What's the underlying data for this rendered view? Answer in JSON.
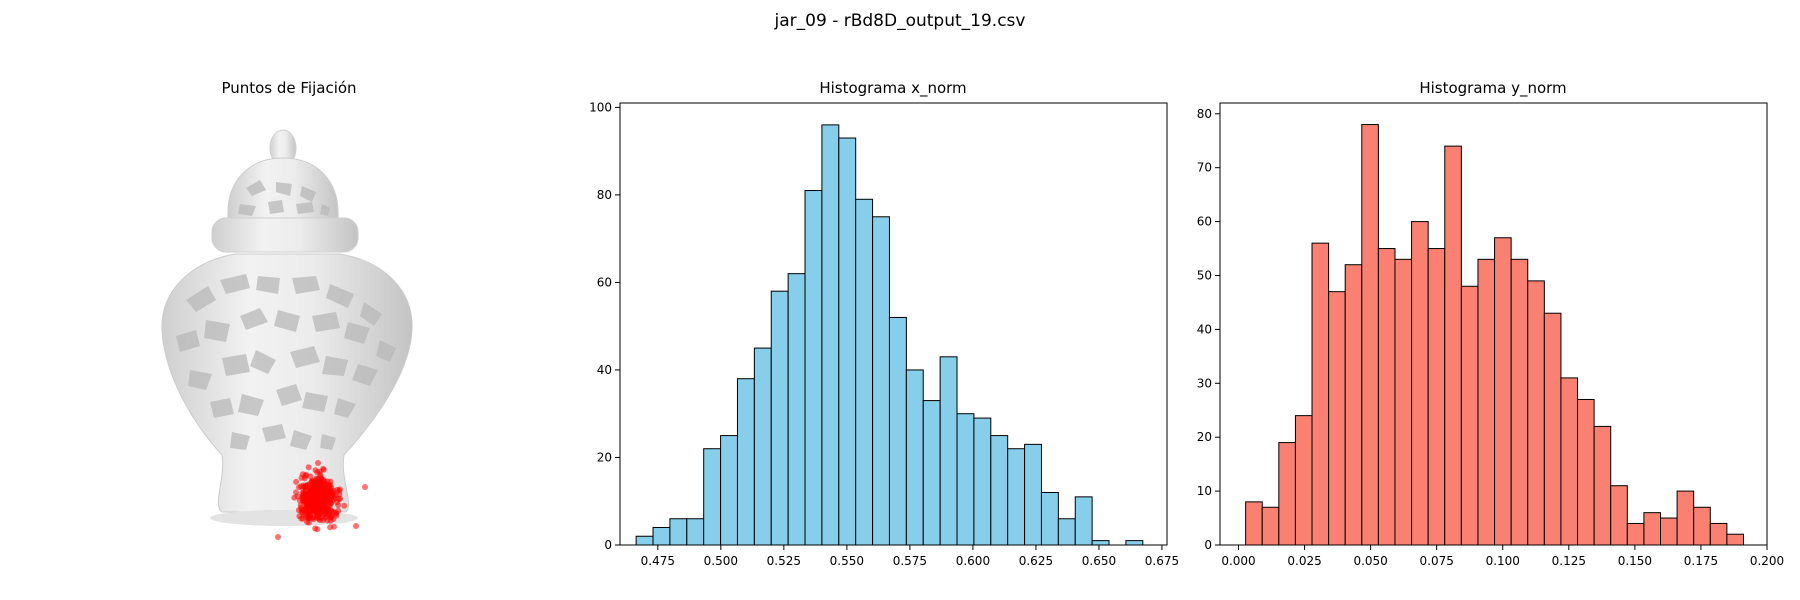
{
  "figure": {
    "suptitle": "jar_09 - rBd8D_output_19.csv"
  },
  "image_panel": {
    "title": "Puntos de Fijación",
    "image": "white-porcelain-ginger-jar-with-lid",
    "marker_color": "#ff0000"
  },
  "chart_data": [
    {
      "type": "bar",
      "subtype": "histogram",
      "title": "Histograma x_norm",
      "xlabel": "",
      "ylabel": "",
      "bar_color": "#87ceeb",
      "edge_color": "#000000",
      "xlim": [
        0.46,
        0.677
      ],
      "ylim": [
        0,
        101
      ],
      "xticks": [
        "0.475",
        "0.500",
        "0.525",
        "0.550",
        "0.575",
        "0.600",
        "0.625",
        "0.650",
        "0.675"
      ],
      "yticks": [
        "0",
        "20",
        "40",
        "60",
        "80",
        "100"
      ],
      "bin_edges": [
        0.4664,
        0.4731,
        0.4798,
        0.4865,
        0.4932,
        0.4999,
        0.5066,
        0.5133,
        0.52,
        0.5267,
        0.5334,
        0.5401,
        0.5468,
        0.5535,
        0.5602,
        0.5669,
        0.5736,
        0.5803,
        0.587,
        0.5937,
        0.6004,
        0.6071,
        0.6138,
        0.6205,
        0.6272,
        0.6339,
        0.6406,
        0.6473,
        0.654,
        0.6607,
        0.6674
      ],
      "values": [
        2,
        4,
        6,
        6,
        22,
        25,
        38,
        45,
        58,
        62,
        81,
        96,
        93,
        79,
        75,
        52,
        40,
        33,
        43,
        30,
        29,
        25,
        22,
        23,
        12,
        6,
        11,
        1,
        0,
        1
      ]
    },
    {
      "type": "bar",
      "subtype": "histogram",
      "title": "Histograma y_norm",
      "xlabel": "",
      "ylabel": "",
      "bar_color": "#fa8072",
      "edge_color": "#000000",
      "xlim": [
        -0.007,
        0.2
      ],
      "ylim": [
        0,
        82
      ],
      "xticks": [
        "0.000",
        "0.025",
        "0.050",
        "0.075",
        "0.100",
        "0.125",
        "0.150",
        "0.175",
        "0.200"
      ],
      "yticks": [
        "0",
        "10",
        "20",
        "30",
        "40",
        "50",
        "60",
        "70",
        "80"
      ],
      "bin_edges": [
        0.0027,
        0.00898,
        0.01526,
        0.02154,
        0.02782,
        0.0341,
        0.04038,
        0.04666,
        0.05294,
        0.05922,
        0.0655,
        0.07178,
        0.07806,
        0.08434,
        0.09062,
        0.0969,
        0.10318,
        0.10946,
        0.11574,
        0.12202,
        0.1283,
        0.13458,
        0.14086,
        0.14714,
        0.15342,
        0.1597,
        0.16598,
        0.17226,
        0.17854,
        0.18482,
        0.1911
      ],
      "values": [
        8,
        7,
        19,
        24,
        56,
        47,
        52,
        78,
        55,
        53,
        60,
        55,
        74,
        48,
        53,
        57,
        53,
        49,
        43,
        31,
        27,
        22,
        11,
        4,
        6,
        5,
        10,
        7,
        4,
        2
      ]
    }
  ]
}
